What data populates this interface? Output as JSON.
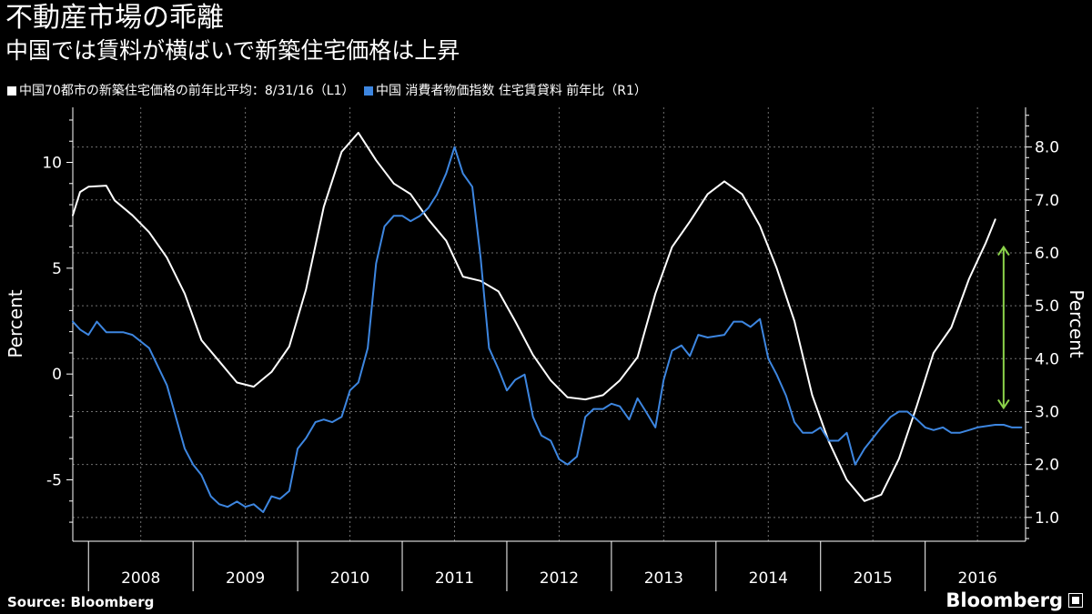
{
  "header": {
    "title": "不動産市場の乖離",
    "subtitle": "中国では賃料が横ばいで新築住宅価格は上昇"
  },
  "footer": {
    "source": "Source: Bloomberg",
    "logo": "Bloomberg"
  },
  "colors": {
    "background": "#000000",
    "white_series": "#ffffff",
    "blue_series": "#3d86e0",
    "arrow": "#8bd24a",
    "grid": "#707070"
  },
  "chart_data": {
    "type": "line",
    "grid": true,
    "legend_placement": "top-left",
    "x_categories": [
      "2008",
      "2009",
      "2010",
      "2011",
      "2012",
      "2013",
      "2014",
      "2015",
      "2016"
    ],
    "left_axis": {
      "label": "Percent",
      "range": [
        -7.9,
        12.6
      ],
      "ticks": [
        "10",
        "5",
        "0",
        "-5"
      ]
    },
    "right_axis": {
      "label": "Percent",
      "range": [
        0.55,
        8.75
      ],
      "ticks": [
        "8.0",
        "7.0",
        "6.0",
        "5.0",
        "4.0",
        "3.0",
        "2.0",
        "1.0"
      ]
    },
    "series": [
      {
        "name": "中国70都市の新築住宅価格の前年比平均：8/31/16（L1）",
        "axis": "left",
        "color": "#ffffff",
        "points": [
          [
            2007.85,
            7.5
          ],
          [
            2007.92,
            8.6
          ],
          [
            2008.0,
            8.85
          ],
          [
            2008.17,
            8.9
          ],
          [
            2008.25,
            8.2
          ],
          [
            2008.42,
            7.5
          ],
          [
            2008.58,
            6.7
          ],
          [
            2008.75,
            5.5
          ],
          [
            2008.92,
            3.8
          ],
          [
            2009.08,
            1.6
          ],
          [
            2009.25,
            0.6
          ],
          [
            2009.42,
            -0.4
          ],
          [
            2009.58,
            -0.6
          ],
          [
            2009.75,
            0.1
          ],
          [
            2009.92,
            1.3
          ],
          [
            2010.08,
            4.0
          ],
          [
            2010.25,
            7.9
          ],
          [
            2010.42,
            10.5
          ],
          [
            2010.58,
            11.4
          ],
          [
            2010.75,
            10.1
          ],
          [
            2010.92,
            9.0
          ],
          [
            2011.08,
            8.5
          ],
          [
            2011.25,
            7.3
          ],
          [
            2011.42,
            6.3
          ],
          [
            2011.58,
            4.6
          ],
          [
            2011.75,
            4.4
          ],
          [
            2011.92,
            3.9
          ],
          [
            2012.08,
            2.5
          ],
          [
            2012.25,
            0.9
          ],
          [
            2012.42,
            -0.3
          ],
          [
            2012.58,
            -1.1
          ],
          [
            2012.75,
            -1.2
          ],
          [
            2012.92,
            -1.0
          ],
          [
            2013.08,
            -0.3
          ],
          [
            2013.25,
            0.8
          ],
          [
            2013.42,
            3.8
          ],
          [
            2013.58,
            6.0
          ],
          [
            2013.75,
            7.2
          ],
          [
            2013.92,
            8.5
          ],
          [
            2014.08,
            9.1
          ],
          [
            2014.25,
            8.5
          ],
          [
            2014.42,
            7.0
          ],
          [
            2014.58,
            5.0
          ],
          [
            2014.75,
            2.5
          ],
          [
            2014.92,
            -1.0
          ],
          [
            2015.08,
            -3.2
          ],
          [
            2015.25,
            -5.0
          ],
          [
            2015.42,
            -6.0
          ],
          [
            2015.58,
            -5.7
          ],
          [
            2015.75,
            -4.0
          ],
          [
            2015.92,
            -1.5
          ],
          [
            2016.08,
            1.0
          ],
          [
            2016.25,
            2.2
          ],
          [
            2016.42,
            4.5
          ],
          [
            2016.58,
            6.2
          ],
          [
            2016.67,
            7.3
          ]
        ]
      },
      {
        "name": "中国 消費者物価指数 住宅賃貸料 前年比（R1）",
        "axis": "right",
        "color": "#3d86e0",
        "points": [
          [
            2007.85,
            4.7
          ],
          [
            2007.92,
            4.55
          ],
          [
            2008.0,
            4.45
          ],
          [
            2008.08,
            4.7
          ],
          [
            2008.17,
            4.5
          ],
          [
            2008.33,
            4.5
          ],
          [
            2008.42,
            4.45
          ],
          [
            2008.58,
            4.2
          ],
          [
            2008.75,
            3.5
          ],
          [
            2008.92,
            2.3
          ],
          [
            2009.0,
            2.0
          ],
          [
            2009.08,
            1.8
          ],
          [
            2009.17,
            1.4
          ],
          [
            2009.25,
            1.25
          ],
          [
            2009.33,
            1.2
          ],
          [
            2009.42,
            1.3
          ],
          [
            2009.5,
            1.2
          ],
          [
            2009.58,
            1.25
          ],
          [
            2009.67,
            1.1
          ],
          [
            2009.75,
            1.4
          ],
          [
            2009.83,
            1.35
          ],
          [
            2009.92,
            1.5
          ],
          [
            2010.0,
            2.3
          ],
          [
            2010.08,
            2.5
          ],
          [
            2010.17,
            2.8
          ],
          [
            2010.25,
            2.85
          ],
          [
            2010.33,
            2.8
          ],
          [
            2010.42,
            2.9
          ],
          [
            2010.5,
            3.4
          ],
          [
            2010.58,
            3.55
          ],
          [
            2010.67,
            4.2
          ],
          [
            2010.75,
            5.8
          ],
          [
            2010.83,
            6.5
          ],
          [
            2010.92,
            6.7
          ],
          [
            2011.0,
            6.7
          ],
          [
            2011.08,
            6.6
          ],
          [
            2011.17,
            6.7
          ],
          [
            2011.25,
            6.85
          ],
          [
            2011.33,
            7.1
          ],
          [
            2011.42,
            7.5
          ],
          [
            2011.5,
            8.0
          ],
          [
            2011.58,
            7.5
          ],
          [
            2011.67,
            7.25
          ],
          [
            2011.75,
            5.9
          ],
          [
            2011.83,
            4.2
          ],
          [
            2011.92,
            3.8
          ],
          [
            2012.0,
            3.4
          ],
          [
            2012.08,
            3.6
          ],
          [
            2012.17,
            3.7
          ],
          [
            2012.25,
            2.9
          ],
          [
            2012.33,
            2.55
          ],
          [
            2012.42,
            2.45
          ],
          [
            2012.5,
            2.1
          ],
          [
            2012.58,
            2.0
          ],
          [
            2012.67,
            2.15
          ],
          [
            2012.75,
            2.9
          ],
          [
            2012.83,
            3.05
          ],
          [
            2012.92,
            3.05
          ],
          [
            2013.0,
            3.15
          ],
          [
            2013.08,
            3.1
          ],
          [
            2013.17,
            2.85
          ],
          [
            2013.25,
            3.25
          ],
          [
            2013.33,
            3.0
          ],
          [
            2013.42,
            2.7
          ],
          [
            2013.5,
            3.6
          ],
          [
            2013.58,
            4.15
          ],
          [
            2013.67,
            4.25
          ],
          [
            2013.75,
            4.05
          ],
          [
            2013.83,
            4.45
          ],
          [
            2013.92,
            4.4
          ],
          [
            2014.08,
            4.45
          ],
          [
            2014.17,
            4.7
          ],
          [
            2014.25,
            4.7
          ],
          [
            2014.33,
            4.6
          ],
          [
            2014.42,
            4.75
          ],
          [
            2014.5,
            4.0
          ],
          [
            2014.58,
            3.7
          ],
          [
            2014.67,
            3.3
          ],
          [
            2014.75,
            2.8
          ],
          [
            2014.83,
            2.6
          ],
          [
            2014.92,
            2.6
          ],
          [
            2015.0,
            2.7
          ],
          [
            2015.08,
            2.45
          ],
          [
            2015.17,
            2.45
          ],
          [
            2015.25,
            2.6
          ],
          [
            2015.33,
            2.0
          ],
          [
            2015.42,
            2.3
          ],
          [
            2015.5,
            2.5
          ],
          [
            2015.58,
            2.7
          ],
          [
            2015.67,
            2.9
          ],
          [
            2015.75,
            3.0
          ],
          [
            2015.83,
            3.0
          ],
          [
            2015.92,
            2.85
          ],
          [
            2016.0,
            2.7
          ],
          [
            2016.08,
            2.65
          ],
          [
            2016.17,
            2.7
          ],
          [
            2016.25,
            2.6
          ],
          [
            2016.33,
            2.6
          ],
          [
            2016.42,
            2.65
          ],
          [
            2016.5,
            2.7
          ],
          [
            2016.67,
            2.75
          ],
          [
            2016.75,
            2.75
          ],
          [
            2016.83,
            2.7
          ],
          [
            2016.92,
            2.7
          ]
        ]
      }
    ],
    "annotation": {
      "type": "double-arrow",
      "axis": "left",
      "x": 2016.75,
      "y_top": 6.0,
      "y_bottom": -1.6,
      "color": "#8bd24a"
    }
  }
}
